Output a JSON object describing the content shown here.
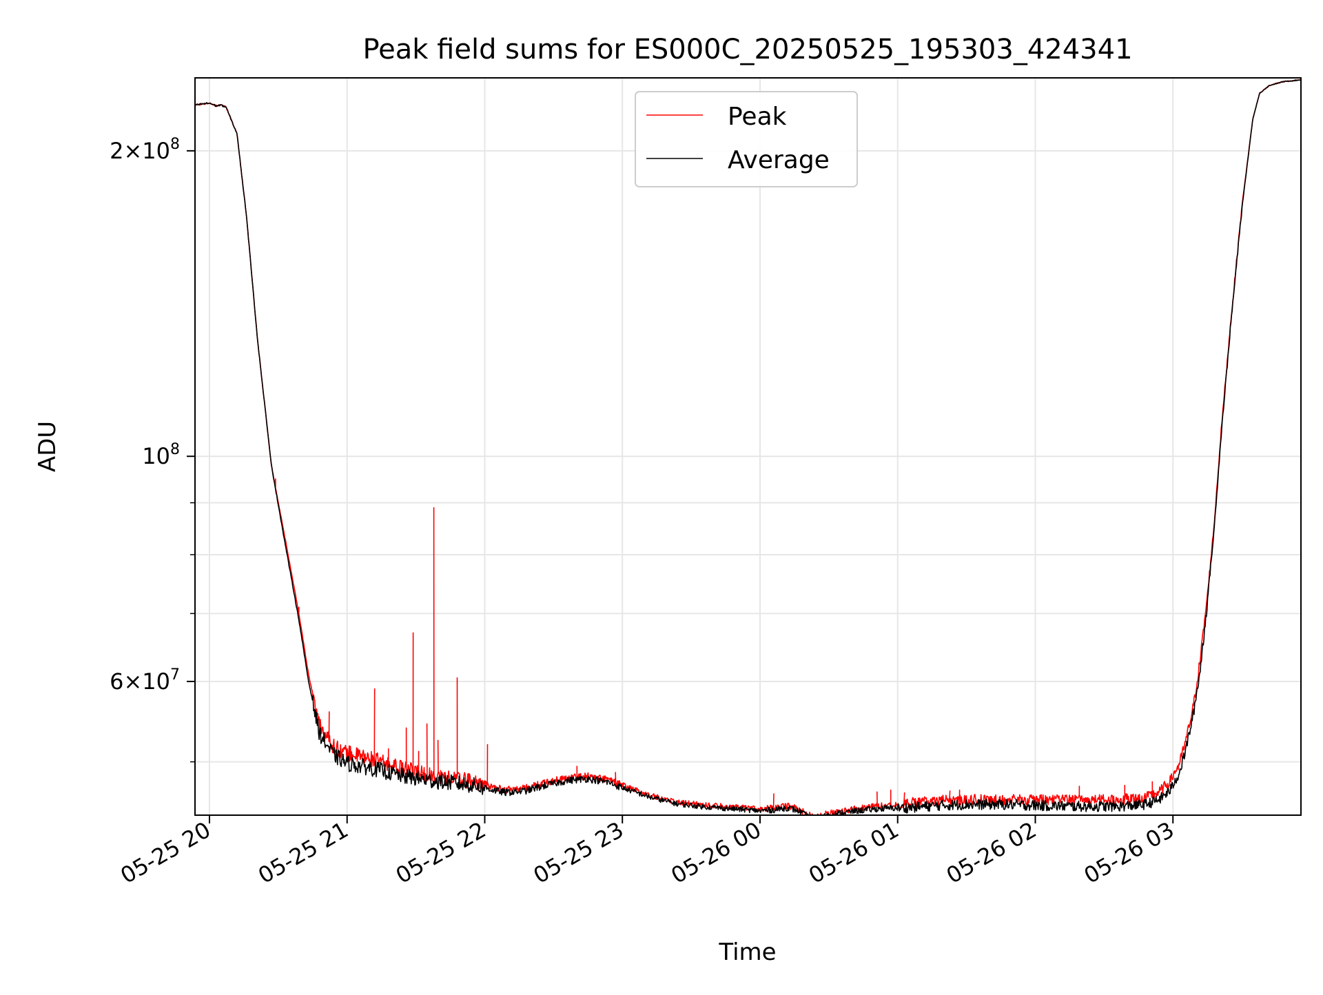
{
  "chart_data": {
    "type": "line",
    "title": "Peak field sums for ES000C_20250525_195303_424341",
    "xlabel": "Time",
    "ylabel": "ADU",
    "yscale": "log",
    "xlim_hours": [
      19.895,
      27.93
    ],
    "ylim": [
      44300000,
      236000000
    ],
    "grid": true,
    "legend_position": "upper center",
    "x_ticks": [
      {
        "hour": 20,
        "label": "05-25 20"
      },
      {
        "hour": 21,
        "label": "05-25 21"
      },
      {
        "hour": 22,
        "label": "05-25 22"
      },
      {
        "hour": 23,
        "label": "05-25 23"
      },
      {
        "hour": 24,
        "label": "05-26 00"
      },
      {
        "hour": 25,
        "label": "05-26 01"
      },
      {
        "hour": 26,
        "label": "05-26 02"
      },
      {
        "hour": 27,
        "label": "05-26 03"
      }
    ],
    "y_major_ticks": [
      {
        "value": 100000000,
        "base": "10",
        "exp": "8"
      },
      {
        "value": 60000000,
        "base": "6×10",
        "exp": "7"
      },
      {
        "value": 200000000,
        "base": "2×10",
        "exp": "8"
      }
    ],
    "y_minor_ticks": [
      50000000,
      70000000,
      80000000,
      90000000
    ],
    "series": [
      {
        "name": "Average",
        "color": "#000000",
        "x_hours": [
          19.9,
          20.0,
          20.05,
          20.08,
          20.12,
          20.2,
          20.27,
          20.35,
          20.45,
          20.55,
          20.65,
          20.72,
          20.8,
          20.9,
          21.0,
          21.2,
          21.4,
          21.6,
          21.8,
          21.95,
          22.05,
          22.15,
          22.3,
          22.45,
          22.6,
          22.75,
          22.9,
          23.0,
          23.2,
          23.4,
          23.6,
          23.8,
          24.0,
          24.1,
          24.2,
          24.28,
          24.35,
          24.42,
          24.48,
          24.55,
          24.7,
          24.85,
          25.0,
          25.1,
          25.3,
          25.5,
          25.8,
          26.0,
          26.3,
          26.6,
          26.8,
          26.9,
          26.98,
          27.05,
          27.1,
          27.15,
          27.2,
          27.25,
          27.3,
          27.35,
          27.42,
          27.5,
          27.58,
          27.63,
          27.7,
          27.8,
          27.93
        ],
        "values": [
          222000000,
          223000000,
          221500000,
          222000000,
          221000000,
          208000000,
          172000000,
          130000000,
          98000000,
          82000000,
          69000000,
          60000000,
          53500000,
          51000000,
          50000000,
          49400000,
          48600000,
          48100000,
          47800000,
          47500000,
          47000000,
          46700000,
          46900000,
          47500000,
          48000000,
          48200000,
          47800000,
          47200000,
          46200000,
          45500000,
          45200000,
          45000000,
          44800000,
          44900000,
          45100000,
          44800000,
          44200000,
          44000000,
          44300000,
          44500000,
          44800000,
          45000000,
          45100000,
          45200000,
          45400000,
          45500000,
          45500000,
          45400000,
          45300000,
          45300000,
          45500000,
          46000000,
          47000000,
          49000000,
          52000000,
          56000000,
          62000000,
          72000000,
          85000000,
          105000000,
          135000000,
          175000000,
          215000000,
          228000000,
          232000000,
          234000000,
          235000000
        ]
      },
      {
        "name": "Peak",
        "color": "#ff0000",
        "x_hours": [
          19.9,
          20.0,
          20.05,
          20.08,
          20.12,
          20.2,
          20.27,
          20.35,
          20.45,
          20.55,
          20.65,
          20.72,
          20.8,
          20.9,
          21.0,
          21.2,
          21.4,
          21.6,
          21.8,
          21.95,
          22.05,
          22.15,
          22.3,
          22.45,
          22.6,
          22.75,
          22.9,
          23.0,
          23.2,
          23.4,
          23.6,
          23.8,
          24.0,
          24.1,
          24.2,
          24.28,
          24.35,
          24.42,
          24.48,
          24.55,
          24.7,
          24.85,
          25.0,
          25.1,
          25.3,
          25.5,
          25.8,
          26.0,
          26.3,
          26.6,
          26.8,
          26.9,
          26.98,
          27.05,
          27.1,
          27.15,
          27.2,
          27.25,
          27.3,
          27.35,
          27.42,
          27.5,
          27.58,
          27.63,
          27.7,
          27.8,
          27.93
        ],
        "values": [
          222000000,
          223000000,
          221500000,
          222000000,
          221000000,
          208000000,
          172000000,
          130000000,
          98000000,
          83000000,
          70000000,
          61000000,
          54500000,
          52000000,
          51200000,
          50400000,
          49400000,
          48700000,
          48300000,
          47900000,
          47300000,
          47000000,
          47200000,
          47800000,
          48300000,
          48500000,
          48100000,
          47500000,
          46400000,
          45700000,
          45400000,
          45200000,
          45000000,
          45100000,
          45300000,
          45000000,
          44400000,
          44200000,
          44500000,
          44700000,
          45000000,
          45300000,
          45500000,
          45700000,
          45900000,
          46000000,
          46000000,
          46000000,
          46000000,
          46000000,
          46200000,
          46800000,
          48000000,
          50000000,
          53000000,
          57000000,
          63500000,
          73000000,
          86000000,
          106000000,
          136000000,
          176000000,
          215000000,
          228000000,
          232000000,
          234000000,
          235000000
        ]
      }
    ],
    "peak_spikes": [
      {
        "hour": 20.48,
        "value": 95000000
      },
      {
        "hour": 20.65,
        "value": 71000000
      },
      {
        "hour": 20.87,
        "value": 56000000
      },
      {
        "hour": 21.2,
        "value": 59000000
      },
      {
        "hour": 21.3,
        "value": 51500000
      },
      {
        "hour": 21.43,
        "value": 54000000
      },
      {
        "hour": 21.48,
        "value": 67000000
      },
      {
        "hour": 21.52,
        "value": 51200000
      },
      {
        "hour": 21.58,
        "value": 54500000
      },
      {
        "hour": 21.63,
        "value": 89000000
      },
      {
        "hour": 21.66,
        "value": 52500000
      },
      {
        "hour": 21.8,
        "value": 60500000
      },
      {
        "hour": 22.02,
        "value": 52000000
      },
      {
        "hour": 22.67,
        "value": 49500000
      },
      {
        "hour": 22.95,
        "value": 48800000
      },
      {
        "hour": 24.1,
        "value": 46500000
      },
      {
        "hour": 24.85,
        "value": 46700000
      },
      {
        "hour": 24.95,
        "value": 46900000
      },
      {
        "hour": 25.05,
        "value": 46600000
      },
      {
        "hour": 25.38,
        "value": 46800000
      },
      {
        "hour": 25.45,
        "value": 46900000
      },
      {
        "hour": 26.32,
        "value": 47300000
      },
      {
        "hour": 26.65,
        "value": 47400000
      },
      {
        "hour": 26.85,
        "value": 47800000
      }
    ],
    "legend": [
      {
        "label": "Peak",
        "color": "#ff0000"
      },
      {
        "label": "Average",
        "color": "#000000"
      }
    ]
  }
}
